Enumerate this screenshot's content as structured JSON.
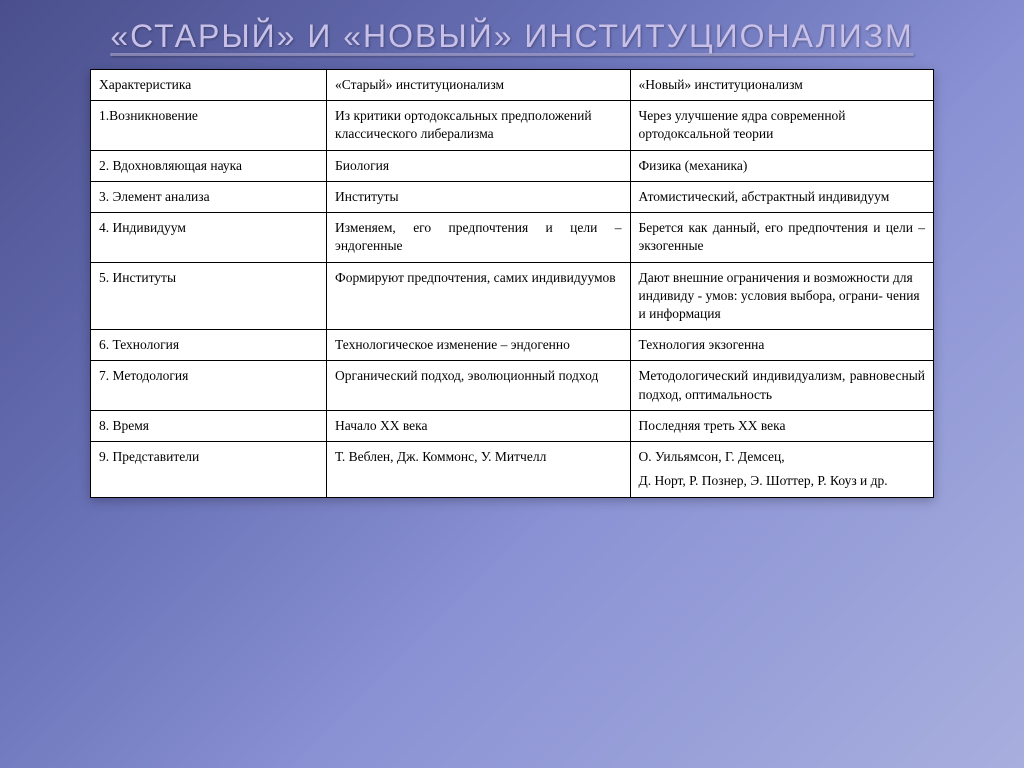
{
  "title": "«СТАРЫЙ» И «НОВЫЙ» ИНСТИТУЦИОНАЛИЗМ",
  "colors": {
    "bg_gradient_start": "#4a4f8c",
    "bg_gradient_end": "#a8afde",
    "title_color": "#c8c0e8",
    "table_bg": "#ffffff",
    "cell_border": "#000000",
    "text_color": "#000000"
  },
  "typography": {
    "title_font": "Arial",
    "title_size_pt": 24,
    "body_font": "Times New Roman",
    "body_size_pt": 10
  },
  "table": {
    "columns": [
      {
        "label": "Характеристика",
        "width_pct": 28
      },
      {
        "label": "«Старый» институционализм",
        "width_pct": 36
      },
      {
        "label": "«Новый» институционализм",
        "width_pct": 36
      }
    ],
    "rows": [
      {
        "c0": "1.Возникновение",
        "c1": "Из критики ортодоксальных предположений классического либерализма",
        "c2": "Через улучшение ядра современной ортодоксальной теории"
      },
      {
        "c0": "2. Вдохновляющая наука",
        "c1": "Биология",
        "c2": "Физика (механика)"
      },
      {
        "c0": "3. Элемент анализа",
        "c1": "Институты",
        "c2": "Атомистический, абстрактный индивидуум"
      },
      {
        "c0": "4. Индивидуум",
        "c1": "Изменяем, его предпочтения и цели – эндогенные",
        "c2": "Берется как данный, его предпочтения и цели – экзогенные",
        "c1_justify": true,
        "c2_justify": true
      },
      {
        "c0": "5. Институты",
        "c1": "Формируют предпочтения, самих индивидуумов",
        "c2": "Дают внешние ограничения и возможности для индивиду - умов: условия выбора, ограни- чения и информация",
        "c1_justify": true
      },
      {
        "c0": "6. Технология",
        "c1": "Технологическое изменение – эндогенно",
        "c2": "Технология экзогенна",
        "c1_justify": true
      },
      {
        "c0": "7. Методология",
        "c1": "Органический подход, эволюционный подход",
        "c2": "Методологический индивидуализм, равновесный подход, оптимальность",
        "c1_justify": true,
        "c2_justify": true
      },
      {
        "c0": "8. Время",
        "c1": "Начало XX века",
        "c2": "Последняя треть XX века"
      },
      {
        "c0": "9. Представители",
        "c1": "Т. Веблен, Дж. Коммонс, У. Митчелл",
        "c2_lines": [
          "О. Уильямсон, Г. Демсец,",
          "Д. Норт, Р. Познер, Э. Шоттер, Р. Коуз и др."
        ],
        "c1_justify": true
      }
    ]
  }
}
